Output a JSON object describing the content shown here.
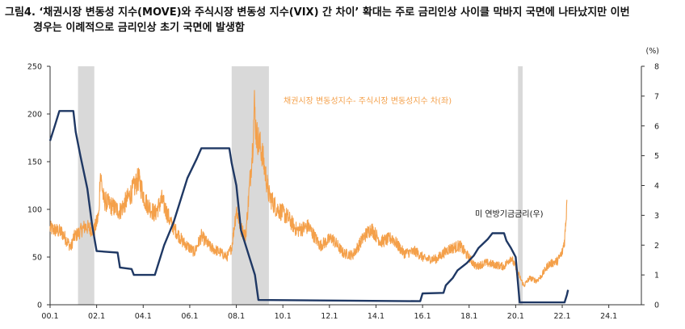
{
  "title": {
    "line1": "그림4. ‘채권시장 변동성 지수(MOVE)와 주식시장 변동성 지수(VIX) 간 차이’ 확대는 주로 금리인상 사이클 막바지 국면에 나타났지만 이번",
    "line2": "경우는 이례적으로 금리인상 초기 국면에 발생함"
  },
  "chart_data": {
    "type": "line",
    "x_tick_labels": [
      "00.1",
      "02.1",
      "04.1",
      "06.1",
      "08.1",
      "10.1",
      "12.1",
      "14.1",
      "16.1",
      "18.1",
      "20.1",
      "22.1",
      "24.1"
    ],
    "x_range": [
      2000.0,
      2025.4
    ],
    "y_left": {
      "ticks": [
        0,
        50,
        100,
        150,
        200,
        250
      ],
      "range": [
        0,
        250
      ]
    },
    "y_right": {
      "unit": "(%)",
      "ticks": [
        0,
        1,
        2,
        3,
        4,
        5,
        6,
        7,
        8
      ],
      "range": [
        0,
        8
      ]
    },
    "grid": false,
    "shaded_periods": [
      [
        2001.2,
        2001.9
      ],
      [
        2007.8,
        2009.4
      ],
      [
        2020.1,
        2020.3
      ]
    ],
    "series": [
      {
        "name": "채권시장 변동성지수- 주식시장 변동성지수 차(좌)",
        "axis": "left",
        "color": "#f4a04a",
        "points": [
          [
            2000.0,
            80
          ],
          [
            2000.5,
            76
          ],
          [
            2000.9,
            60
          ],
          [
            2001.0,
            70
          ],
          [
            2001.5,
            82
          ],
          [
            2001.9,
            78
          ],
          [
            2002.1,
            95
          ],
          [
            2002.15,
            140
          ],
          [
            2002.3,
            110
          ],
          [
            2002.6,
            104
          ],
          [
            2003.0,
            98
          ],
          [
            2003.5,
            118
          ],
          [
            2003.8,
            132
          ],
          [
            2004.1,
            108
          ],
          [
            2004.5,
            95
          ],
          [
            2004.8,
            110
          ],
          [
            2005.2,
            85
          ],
          [
            2005.7,
            66
          ],
          [
            2006.2,
            55
          ],
          [
            2006.5,
            72
          ],
          [
            2006.9,
            60
          ],
          [
            2007.3,
            55
          ],
          [
            2007.6,
            50
          ],
          [
            2007.8,
            60
          ],
          [
            2008.0,
            100
          ],
          [
            2008.2,
            80
          ],
          [
            2008.4,
            72
          ],
          [
            2008.7,
            165
          ],
          [
            2008.78,
            210
          ],
          [
            2008.85,
            180
          ],
          [
            2009.1,
            160
          ],
          [
            2009.4,
            115
          ],
          [
            2009.7,
            102
          ],
          [
            2010.2,
            92
          ],
          [
            2010.6,
            78
          ],
          [
            2011.1,
            82
          ],
          [
            2011.6,
            62
          ],
          [
            2012.1,
            70
          ],
          [
            2012.6,
            54
          ],
          [
            2013.0,
            52
          ],
          [
            2013.5,
            72
          ],
          [
            2013.8,
            80
          ],
          [
            2014.2,
            66
          ],
          [
            2014.7,
            70
          ],
          [
            2015.2,
            54
          ],
          [
            2015.7,
            56
          ],
          [
            2016.1,
            48
          ],
          [
            2016.6,
            48
          ],
          [
            2017.1,
            58
          ],
          [
            2017.6,
            62
          ],
          [
            2018.1,
            46
          ],
          [
            2018.3,
            40
          ],
          [
            2018.7,
            44
          ],
          [
            2019.1,
            42
          ],
          [
            2019.5,
            40
          ],
          [
            2019.8,
            50
          ],
          [
            2020.05,
            36
          ],
          [
            2020.2,
            28
          ],
          [
            2020.35,
            20
          ],
          [
            2020.6,
            28
          ],
          [
            2020.9,
            25
          ],
          [
            2021.1,
            30
          ],
          [
            2021.4,
            42
          ],
          [
            2021.8,
            46
          ],
          [
            2022.0,
            55
          ],
          [
            2022.1,
            68
          ],
          [
            2022.15,
            85
          ],
          [
            2022.2,
            110
          ]
        ]
      },
      {
        "name": "미 연방기금금리(우)",
        "axis": "right",
        "color": "#1f3864",
        "points": [
          [
            2000.0,
            5.5
          ],
          [
            2000.2,
            6.0
          ],
          [
            2000.4,
            6.5
          ],
          [
            2001.0,
            6.5
          ],
          [
            2001.1,
            5.8
          ],
          [
            2001.3,
            5.0
          ],
          [
            2001.6,
            3.9
          ],
          [
            2001.8,
            2.7
          ],
          [
            2002.0,
            1.8
          ],
          [
            2002.9,
            1.75
          ],
          [
            2003.0,
            1.25
          ],
          [
            2003.5,
            1.2
          ],
          [
            2003.6,
            1.0
          ],
          [
            2004.5,
            1.0
          ],
          [
            2004.9,
            2.0
          ],
          [
            2005.3,
            2.75
          ],
          [
            2005.6,
            3.5
          ],
          [
            2005.9,
            4.25
          ],
          [
            2006.3,
            4.9
          ],
          [
            2006.5,
            5.25
          ],
          [
            2007.7,
            5.25
          ],
          [
            2007.8,
            4.75
          ],
          [
            2008.0,
            4.0
          ],
          [
            2008.2,
            2.5
          ],
          [
            2008.4,
            2.0
          ],
          [
            2008.8,
            1.0
          ],
          [
            2008.95,
            0.16
          ],
          [
            2015.9,
            0.12
          ],
          [
            2016.0,
            0.38
          ],
          [
            2016.9,
            0.4
          ],
          [
            2017.0,
            0.65
          ],
          [
            2017.3,
            0.9
          ],
          [
            2017.5,
            1.15
          ],
          [
            2017.9,
            1.4
          ],
          [
            2018.2,
            1.65
          ],
          [
            2018.4,
            1.9
          ],
          [
            2018.8,
            2.2
          ],
          [
            2019.0,
            2.4
          ],
          [
            2019.5,
            2.4
          ],
          [
            2019.6,
            2.15
          ],
          [
            2019.8,
            1.9
          ],
          [
            2020.0,
            1.6
          ],
          [
            2020.17,
            0.08
          ],
          [
            2022.1,
            0.08
          ],
          [
            2022.2,
            0.33
          ],
          [
            2022.25,
            0.5
          ]
        ]
      }
    ],
    "annotations": {
      "left_series_label": "채권시장 변동성지수- 주식시장 변동성지수 차(좌)",
      "right_series_label": "미 연방기금금리(우)"
    }
  }
}
